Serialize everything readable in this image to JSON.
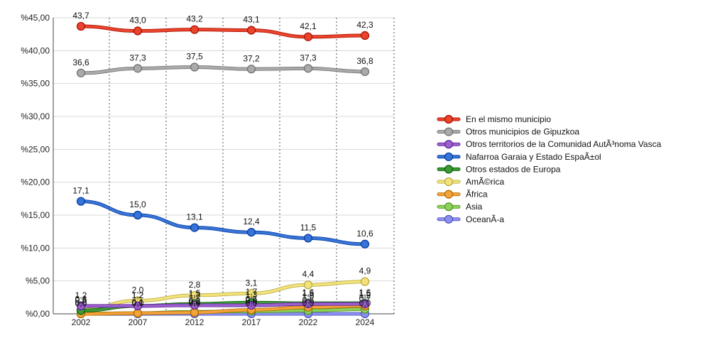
{
  "chart_data": {
    "type": "line",
    "title": "",
    "xlabel": "",
    "ylabel": "",
    "categories": [
      "2002",
      "2007",
      "2012",
      "2017",
      "2022",
      "2024"
    ],
    "ylim": [
      0,
      45
    ],
    "ytick_values": [
      0,
      5,
      10,
      15,
      20,
      25,
      30,
      35,
      40,
      45
    ],
    "ytick_labels": [
      "%0,00",
      "%5,00",
      "%10,00",
      "%15,00",
      "%20,00",
      "%25,00",
      "%30,00",
      "%35,00",
      "%40,00",
      "%45,00"
    ],
    "grid": true,
    "legend_position": "right",
    "series": [
      {
        "name": "En el mismo municipio",
        "color": "#e8452c",
        "values": [
          43.7,
          43.0,
          43.2,
          43.1,
          42.1,
          42.3
        ],
        "labels": [
          "43,7",
          "43,0",
          "43,2",
          "43,1",
          "42,1",
          "42,3"
        ],
        "show_labels": true
      },
      {
        "name": "Otros municipios de Gipuzkoa",
        "color": "#aaaaaa",
        "values": [
          36.6,
          37.3,
          37.5,
          37.2,
          37.3,
          36.8
        ],
        "labels": [
          "36,6",
          "37,3",
          "37,5",
          "37,2",
          "37,3",
          "36,8"
        ],
        "show_labels": true
      },
      {
        "name": "Otros territorios de la Comunidad AutÃ³noma Vasca",
        "color": "#9b5fd0",
        "values": [
          1.2,
          1.2,
          1.3,
          1.3,
          1.5,
          1.5
        ],
        "labels": [
          "1,2",
          "1,2",
          "1,3",
          "1,3",
          "1,5",
          "1,5"
        ],
        "show_labels": true
      },
      {
        "name": "Nafarroa Garaia y Estado EspaÃ±ol",
        "color": "#3874d8",
        "values": [
          17.1,
          15.0,
          13.1,
          12.4,
          11.5,
          10.6
        ],
        "labels": [
          "17,1",
          "15,0",
          "13,1",
          "12,4",
          "11,5",
          "10,6"
        ],
        "show_labels": true
      },
      {
        "name": "Otros estados de Europa",
        "color": "#3d9a36",
        "values": [
          0.5,
          1.2,
          1.5,
          1.7,
          1.6,
          1.6
        ],
        "labels": [
          "0,5",
          "1,2",
          "1,5",
          "1,7",
          "1,6",
          "1,6"
        ],
        "show_labels": true
      },
      {
        "name": "AmÃ©rica",
        "color": "#f2e27a",
        "values": [
          0.6,
          2.0,
          2.8,
          3.1,
          4.4,
          4.9
        ],
        "labels": [
          "0,6",
          "2,0",
          "2,8",
          "3,1",
          "4,4",
          "4,9"
        ],
        "show_labels": true
      },
      {
        "name": "Ãfrica",
        "color": "#f2a33a",
        "values": [
          0.0,
          0.1,
          0.2,
          0.6,
          1.0,
          1.2
        ],
        "labels": [
          "0,0",
          "0,1",
          "0,2",
          "0,6",
          "1,0",
          "1,2"
        ],
        "show_labels": true
      },
      {
        "name": "Asia",
        "color": "#8cd15a",
        "values": [
          0.0,
          0.1,
          0.3,
          0.4,
          0.5,
          0.7
        ],
        "labels": [
          "0,0",
          "0,1",
          "0,3",
          "0,4",
          "0,5",
          "0,7"
        ],
        "show_labels": true
      },
      {
        "name": "OceanÃ-a",
        "color": "#8a8ff0",
        "values": [
          0.0,
          0.0,
          0.0,
          0.0,
          0.0,
          0.0
        ],
        "labels": [
          "0,0",
          "0,0",
          "0,0",
          "0,0",
          "0,0",
          "0,0"
        ],
        "show_labels": true
      }
    ]
  }
}
